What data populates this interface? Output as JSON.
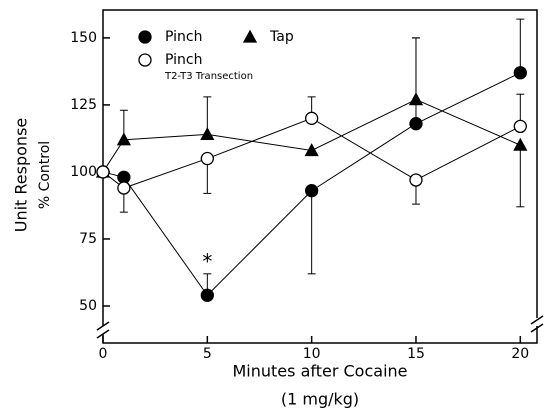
{
  "chart_data": {
    "type": "line",
    "x_label": "Minutes after Cocaine",
    "x_sublabel": "(1 mg/kg)",
    "y_label": "Unit Response",
    "y_sublabel": "% Control",
    "annotation": "*",
    "annotation_x": 5,
    "annotation_y": 66,
    "legend_note": "T2-T3 Transection",
    "xlim": [
      0,
      20.8
    ],
    "ylim": [
      36.2,
      160.4
    ],
    "xticks": [
      0,
      5,
      10,
      15,
      20
    ],
    "yticks": [
      50,
      75,
      100,
      125,
      150
    ],
    "series": [
      {
        "name": "Pinch",
        "marker": "filled-circle",
        "color": "#000",
        "x": [
          0,
          1,
          5,
          10,
          15,
          20
        ],
        "values": [
          100,
          98,
          54,
          93,
          118,
          137
        ],
        "errors": [
          null,
          null,
          8,
          31,
          32,
          20
        ],
        "error_dir": [
          "up",
          "up",
          "up",
          "down",
          "up",
          "up"
        ]
      },
      {
        "name": "Tap",
        "marker": "triangle",
        "color": "#000",
        "x": [
          0,
          1,
          5,
          10,
          15,
          20
        ],
        "values": [
          100,
          112,
          114,
          108,
          127,
          110
        ],
        "errors": [
          null,
          11,
          14,
          null,
          23,
          23
        ],
        "error_dir": [
          "up",
          "up",
          "up",
          "up",
          "up",
          "down"
        ]
      },
      {
        "name": "Pinch",
        "marker": "open-circle",
        "color": "#000",
        "x": [
          0,
          1,
          5,
          10,
          15,
          20
        ],
        "values": [
          100,
          94,
          105,
          120,
          97,
          117
        ],
        "errors": [
          null,
          9,
          13,
          8,
          9,
          12
        ],
        "error_dir": [
          "down",
          "down",
          "down",
          "up",
          "down",
          "up"
        ]
      }
    ]
  }
}
